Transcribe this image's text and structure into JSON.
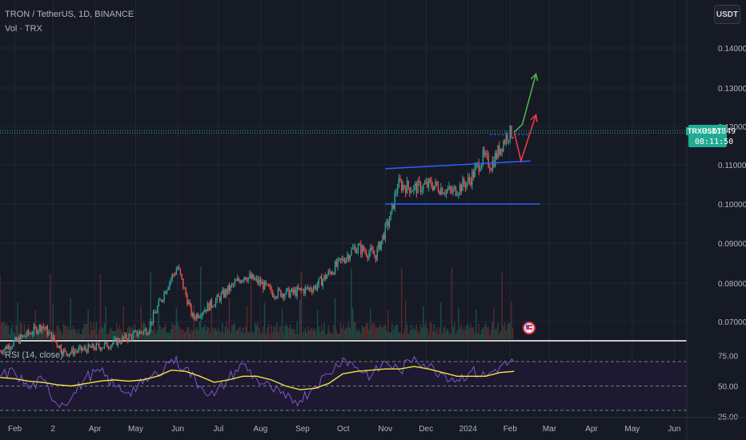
{
  "header": {
    "symbol_line": "TRON / TetherUS, 1D, BINANCE",
    "volume_line": "Vol · TRX",
    "currency_button": "USDT",
    "rsi_label": "RSI (14, close)"
  },
  "price_tag": {
    "symbol": "TRXUSDT",
    "price": "0.11849",
    "countdown": "08:11:50",
    "color": "#22ab94"
  },
  "colors": {
    "background": "#161a25",
    "up": "#26a69a",
    "down": "#ef5350",
    "channel": "#2962ff",
    "rsi_line": "#7e57c2",
    "rsi_ma": "#f0e442",
    "arrow_up": "#4caf50",
    "arrow_down": "#f23645"
  },
  "chart_data": [
    {
      "type": "candlestick",
      "title": "TRON / TetherUS, 1D, BINANCE",
      "ylim": [
        0.0665,
        0.1455
      ],
      "y_ticks": [
        "0.14000",
        "0.13000",
        "0.12000",
        "0.11000",
        "0.10000",
        "0.09000",
        "0.08000",
        "0.07000"
      ],
      "x_ticks": [
        "Feb",
        "2",
        "Apr",
        "May",
        "Jun",
        "Jul",
        "Aug",
        "Sep",
        "Oct",
        "Nov",
        "Dec",
        "2024",
        "Feb",
        "Mar",
        "Apr",
        "May",
        "Jun"
      ],
      "price_path": [
        {
          "date": "2023-01-21",
          "close": 0.0625
        },
        {
          "date": "2023-02-21",
          "close": 0.069
        },
        {
          "date": "2023-03-10",
          "close": 0.062
        },
        {
          "date": "2023-04-10",
          "close": 0.064
        },
        {
          "date": "2023-05-10",
          "close": 0.068
        },
        {
          "date": "2023-05-25",
          "close": 0.08
        },
        {
          "date": "2023-06-01",
          "close": 0.084
        },
        {
          "date": "2023-06-12",
          "close": 0.071
        },
        {
          "date": "2023-07-01",
          "close": 0.076
        },
        {
          "date": "2023-07-20",
          "close": 0.082
        },
        {
          "date": "2023-08-01",
          "close": 0.08
        },
        {
          "date": "2023-08-10",
          "close": 0.0775
        },
        {
          "date": "2023-08-25",
          "close": 0.0775
        },
        {
          "date": "2023-09-10",
          "close": 0.079
        },
        {
          "date": "2023-09-25",
          "close": 0.084
        },
        {
          "date": "2023-10-10",
          "close": 0.089
        },
        {
          "date": "2023-10-25",
          "close": 0.087
        },
        {
          "date": "2023-11-05",
          "close": 0.097
        },
        {
          "date": "2023-11-10",
          "close": 0.105
        },
        {
          "date": "2023-11-22",
          "close": 0.104
        },
        {
          "date": "2023-12-05",
          "close": 0.105
        },
        {
          "date": "2023-12-20",
          "close": 0.103
        },
        {
          "date": "2024-01-02",
          "close": 0.106
        },
        {
          "date": "2024-01-12",
          "close": 0.112
        },
        {
          "date": "2024-01-18",
          "close": 0.11
        },
        {
          "date": "2024-01-30",
          "close": 0.118
        },
        {
          "date": "2024-02-03",
          "close": 0.1185
        }
      ],
      "channel": {
        "upper": [
          {
            "date": "2023-11-01",
            "value": 0.109
          },
          {
            "date": "2024-02-16",
            "value": 0.111
          }
        ],
        "lower": [
          {
            "date": "2023-11-01",
            "value": 0.1
          },
          {
            "date": "2024-02-23",
            "value": 0.1
          }
        ]
      },
      "resistance": 0.1185,
      "projections": [
        {
          "name": "bull",
          "points": [
            {
              "date": "2024-02-04",
              "value": 0.1185
            },
            {
              "date": "2024-02-10",
              "value": 0.1205
            },
            {
              "date": "2024-02-20",
              "value": 0.1335
            }
          ]
        },
        {
          "name": "bear",
          "points": [
            {
              "date": "2024-02-04",
              "value": 0.1185
            },
            {
              "date": "2024-02-09",
              "value": 0.111
            },
            {
              "date": "2024-02-20",
              "value": 0.123
            }
          ]
        }
      ]
    },
    {
      "type": "line",
      "title": "RSI (14, close)",
      "ylim": [
        25,
        80
      ],
      "y_ticks": [
        "75.00",
        "50.00",
        "25.00"
      ],
      "bands": [
        70,
        50,
        30
      ],
      "series": [
        {
          "role": "rsi",
          "values": [
            58,
            62,
            48,
            55,
            35,
            40,
            57,
            62,
            50,
            45,
            52,
            60,
            72,
            65,
            50,
            42,
            56,
            68,
            55,
            48,
            40,
            38,
            50,
            60,
            73,
            65,
            58,
            70,
            62,
            74,
            66,
            60,
            55,
            62,
            58,
            66,
            70
          ]
        },
        {
          "role": "rsi-ma",
          "values": [
            57,
            56,
            54,
            53,
            51,
            50,
            52,
            54,
            55,
            54,
            55,
            58,
            63,
            62,
            58,
            53,
            55,
            58,
            58,
            55,
            50,
            47,
            48,
            52,
            60,
            62,
            63,
            64,
            64,
            66,
            64,
            61,
            58,
            58,
            58,
            61,
            62
          ]
        }
      ]
    }
  ]
}
